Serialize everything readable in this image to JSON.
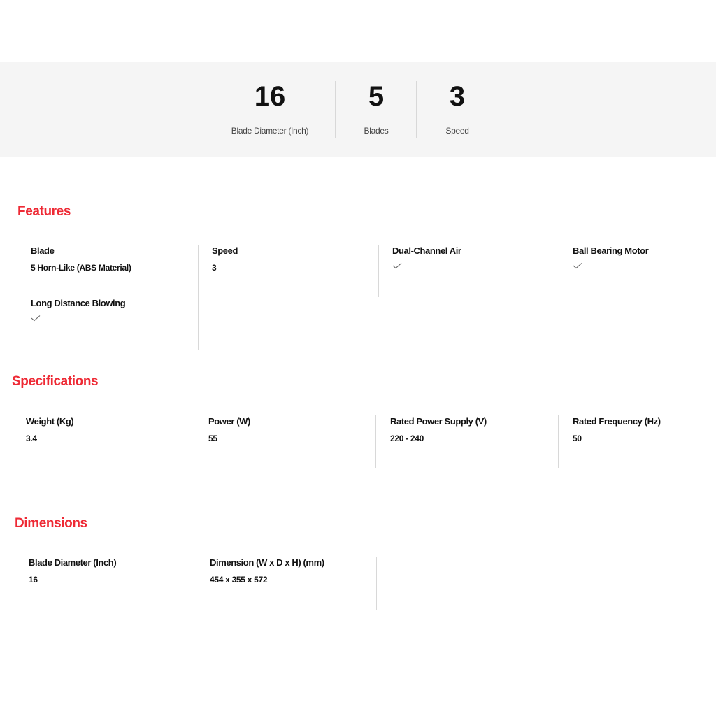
{
  "summary": [
    {
      "value": "16",
      "label": "Blade Diameter (Inch)"
    },
    {
      "value": "5",
      "label": "Blades"
    },
    {
      "value": "3",
      "label": "Speed"
    }
  ],
  "features": {
    "heading": "Features",
    "items": [
      {
        "title": "Blade",
        "value": "5 Horn-Like (ABS Material)"
      },
      {
        "title": "Speed",
        "value": "3"
      },
      {
        "title": "Dual-Channel Air",
        "icon": "checkmark-icon"
      },
      {
        "title": "Ball Bearing Motor",
        "icon": "checkmark-icon"
      },
      {
        "title": "Long Distance Blowing",
        "icon": "checkmark-icon"
      }
    ]
  },
  "specifications": {
    "heading": "Specifications",
    "items": [
      {
        "title": "Weight (Kg)",
        "value": "3.4"
      },
      {
        "title": "Power (W)",
        "value": "55"
      },
      {
        "title": "Rated Power Supply (V)",
        "value": "220 - 240"
      },
      {
        "title": "Rated Frequency (Hz)",
        "value": "50"
      }
    ]
  },
  "dimensions": {
    "heading": "Dimensions",
    "items": [
      {
        "title": "Blade Diameter (Inch)",
        "value": "16"
      },
      {
        "title": "Dimension (W x D x H) (mm)",
        "value": "454 x 355 x 572"
      }
    ]
  },
  "colors": {
    "accent": "#ee2a35",
    "band": "#f5f5f5",
    "divider": "#d8d8d8"
  }
}
